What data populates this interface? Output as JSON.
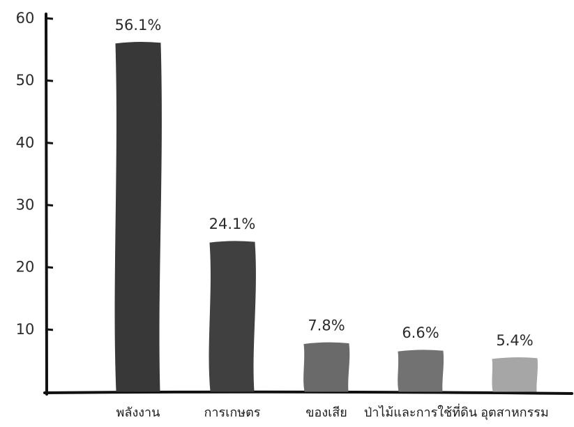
{
  "chart_data": {
    "type": "bar",
    "title": "",
    "xlabel": "",
    "ylabel": "",
    "ylim": [
      0,
      60
    ],
    "yticks": [
      10,
      20,
      30,
      40,
      50,
      60
    ],
    "grid": false,
    "categories": [
      "พลังงาน",
      "การเกษตร",
      "ของเสีย",
      "ป่าไม้และการใช้ที่ดิน",
      "อุตสาหกรรม"
    ],
    "values": [
      56.1,
      24.1,
      7.8,
      6.6,
      5.4
    ],
    "data_labels": [
      "56.1%",
      "24.1%",
      "7.8%",
      "6.6%",
      "5.4%"
    ],
    "bar_colors": [
      "#383838",
      "#404040",
      "#6a6a6a",
      "#727272",
      "#a6a6a6"
    ]
  }
}
